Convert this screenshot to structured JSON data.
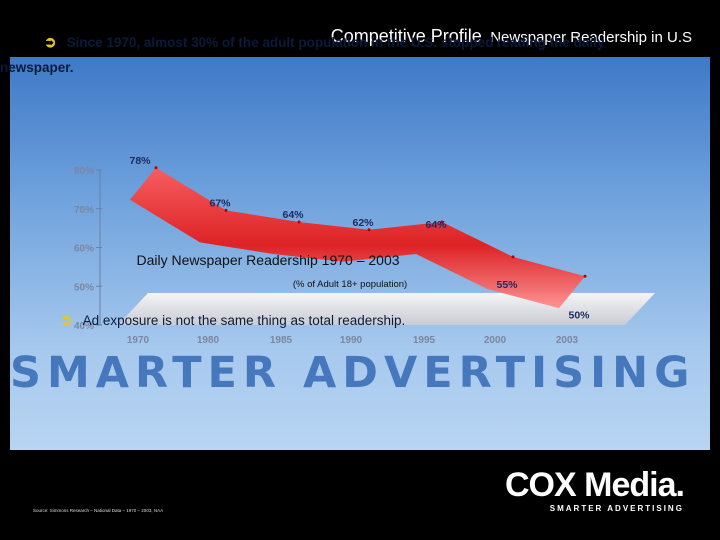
{
  "header": {
    "title": "Competitive Profile",
    "subtitle": "Newspaper Readership in U.S"
  },
  "bullets": [
    {
      "icon": "arrow-circle-icon",
      "line1": "Since 1970, almost 30% of the adult population in the U.S. stopped reading the daily",
      "line2": "newspaper."
    },
    {
      "icon": "arrow-circle-icon",
      "line1": "Ad exposure is not the same thing as total readership."
    }
  ],
  "watermark": "SMARTER ADVERTISING",
  "logo": {
    "name": "COX Media.",
    "tagline": "SMARTER ADVERTISING"
  },
  "source": "Source: Simmons Research – National Data – 1970 – 2003, NAA",
  "colors": {
    "accent": "#e02020",
    "panel": "#5e93d6",
    "bullet_arrow": "#e6c62b"
  },
  "chart_data": {
    "type": "area",
    "title": "Daily Newspaper Readership 1970 – 2003",
    "subtitle": "(% of Adult 18+ population)",
    "categories": [
      "1970",
      "1980",
      "1985",
      "1990",
      "1995",
      "2000",
      "2003"
    ],
    "values": [
      78,
      67,
      64,
      62,
      64,
      55,
      50
    ],
    "data_labels": [
      "78%",
      "67%",
      "64%",
      "62%",
      "64%",
      "55%",
      "50%"
    ],
    "y_ticks": [
      "80%",
      "70%",
      "60%",
      "50%",
      "40%"
    ],
    "ylim": [
      40,
      80
    ],
    "grid": false,
    "legend": "none"
  }
}
